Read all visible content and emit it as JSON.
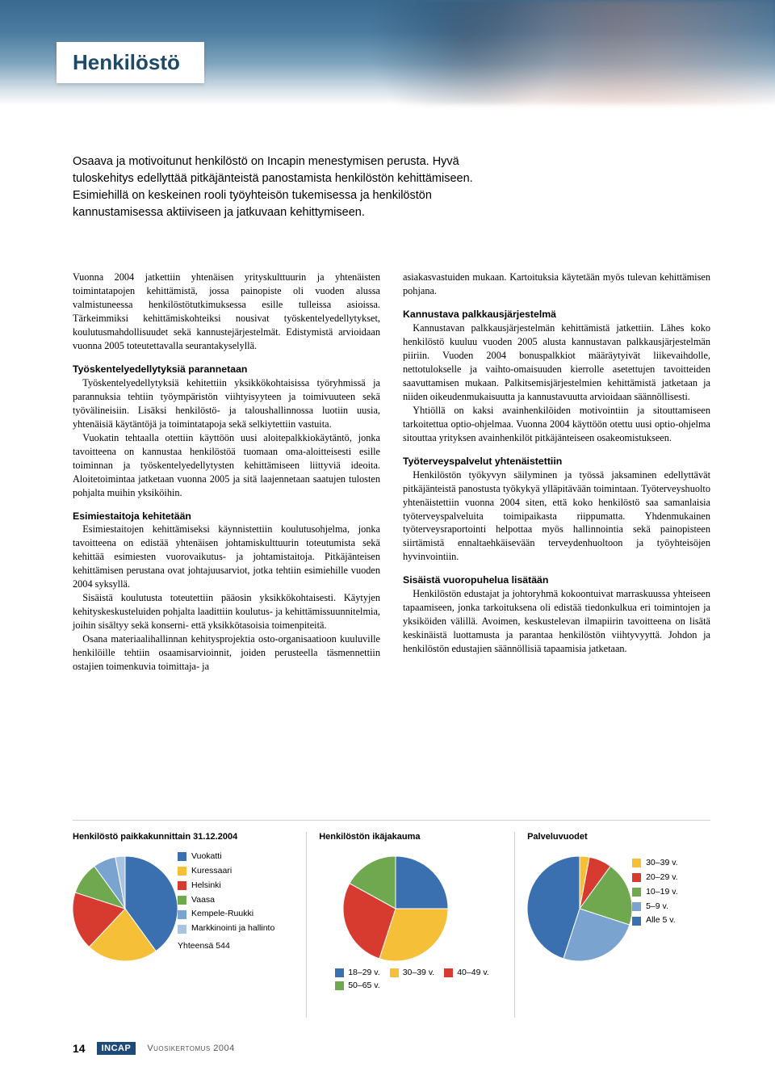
{
  "header": {
    "title": "Henkilöstö"
  },
  "intro": "Osaava ja motivoitunut henkilöstö on Incapin menestymisen perusta. Hyvä tuloskehitys edellyttää pitkäjänteistä panostamista henkilöstön kehittämiseen. Esimiehillä on keskeinen rooli työyhteisön tukemisessa ja henkilöstön kannustamisessa aktiiviseen ja jatkuvaan kehittymiseen.",
  "left": {
    "p1": "Vuonna 2004 jatkettiin yhtenäisen yrityskulttuurin ja yhtenäisten toimintatapojen kehittämistä, jossa painopiste oli vuoden alussa valmistuneessa henkilöstötutkimuksessa esille tulleissa asioissa. Tärkeimmiksi kehittämiskohteiksi nousivat työskentelyedellytykset, koulutusmahdollisuudet sekä kannustejärjestelmät. Edistymistä arvioidaan vuonna 2005 toteutettavalla seurantakyselyllä.",
    "h2": "Työskentelyedellytyksiä parannetaan",
    "p2": "Työskentelyedellytyksiä kehitettiin yksikkökohtaisissa työryhmissä ja parannuksia tehtiin työympäristön viihtyisyyteen ja toimivuuteen sekä työvälineisiin. Lisäksi henkilöstö- ja taloushallinnossa luotiin uusia, yhtenäisiä käytäntöjä ja toimintatapoja sekä selkiytettiin vastuita.",
    "p3": "Vuokatin tehtaalla otettiin käyttöön uusi aloitepalkkiokäytäntö, jonka tavoitteena on kannustaa henkilöstöä tuomaan oma-aloitteisesti esille toiminnan ja työskentelyedellytysten kehittämiseen liittyviä ideoita. Aloitetoimintaa jatketaan vuonna 2005 ja sitä laajennetaan saatujen tulosten pohjalta muihin yksiköihin.",
    "h3": "Esimiestaitoja kehitetään",
    "p4": "Esimiestaitojen kehittämiseksi käynnistettiin koulutusohjelma, jonka tavoitteena on edistää yhtenäisen johtamiskulttuurin toteutumista sekä kehittää esimiesten vuorovaikutus- ja johtamistaitoja. Pitkäjänteisen kehittämisen perustana ovat johtajuusarviot, jotka tehtiin esimiehille vuoden 2004 syksyllä.",
    "p5": "Sisäistä koulutusta toteutettiin pääosin yksikkökohtaisesti. Käytyjen kehityskeskusteluiden pohjalta laadittiin koulutus- ja kehittämissuunnitelmia, joihin sisältyy sekä konserni- että yksikkötasoisia toimenpiteitä.",
    "p6": "Osana materiaalihallinnan kehitysprojektia osto-organisaatioon kuuluville henkilöille tehtiin osaamisarvioinnit, joiden perusteella täsmennettiin ostajien toimenkuvia toimittaja- ja"
  },
  "right": {
    "p1": "asiakasvastuiden mukaan. Kartoituksia käytetään myös tulevan kehittämisen pohjana.",
    "h2": "Kannustava palkkausjärjestelmä",
    "p2": "Kannustavan palkkausjärjestelmän kehittämistä jatkettiin. Lähes koko henkilöstö kuuluu vuoden 2005 alusta kannustavan palkkausjärjestelmän piiriin. Vuoden 2004 bonuspalkkiot määräytyivät liikevaihdolle, nettotulokselle ja vaihto-omaisuuden kierrolle asetettujen tavoitteiden saavuttamisen mukaan. Palkitsemisjärjestelmien kehittämistä jatketaan ja niiden oikeudenmukaisuutta ja kannustavuutta arvioidaan säännöllisesti.",
    "p3": "Yhtiöllä on kaksi avainhenkilöiden motivointiin ja sitouttamiseen tarkoitettua optio-ohjelmaa. Vuonna 2004 käyttöön otettu uusi optio-ohjelma sitouttaa yrityksen avainhenkilöt pitkäjänteiseen osakeomistukseen.",
    "h3": "Työterveyspalvelut yhtenäistettiin",
    "p4": "Henkilöstön työkyvyn säilyminen ja työssä jaksaminen edellyttävät pitkäjänteistä panostusta työkykyä ylläpitävään toimintaan. Työterveyshuolto yhtenäistettiin vuonna 2004 siten, että koko henkilöstö saa samanlaisia työterveyspalveluita toimipaikasta riippumatta. Yhdenmukainen työterveysraportointi helpottaa myös hallinnointia sekä painopisteen siirtämistä ennaltaehkäisevään terveydenhuoltoon ja työyhteisöjen hyvinvointiin.",
    "h4": "Sisäistä vuoropuhelua lisätään",
    "p5": "Henkilöstön edustajat ja johtoryhmä kokoontuivat marraskuussa yhteiseen tapaamiseen, jonka tarkoituksena oli edistää tiedonkulkua eri toimintojen ja yksiköiden välillä. Avoimen, keskustelevan ilmapiirin tavoitteena on lisätä keskinäistä luottamusta ja parantaa henkilöstön viihtyvyyttä. Johdon ja henkilöstön edustajien säännöllisiä tapaamisia jatketaan."
  },
  "charts": {
    "chart1": {
      "title": "Henkilöstö paikkakunnittain 31.12.2004",
      "type": "pie",
      "slices": [
        {
          "label": "Vuokatti",
          "value": 40,
          "color": "#3a6fb0"
        },
        {
          "label": "Kuressaari",
          "value": 22,
          "color": "#f5c038"
        },
        {
          "label": "Helsinki",
          "value": 18,
          "color": "#d73a2e"
        },
        {
          "label": "Vaasa",
          "value": 10,
          "color": "#6fa84f"
        },
        {
          "label": "Kempele-Ruukki",
          "value": 7,
          "color": "#7aa3d0"
        },
        {
          "label": "Markkinointi ja hallinto",
          "value": 3,
          "color": "#a8c4e0"
        }
      ],
      "total_label": "Yhteensä 544"
    },
    "chart2": {
      "title": "Henkilöstön ikäjakauma",
      "type": "pie",
      "slices": [
        {
          "label": "18–29 v.",
          "value": 25,
          "color": "#3a6fb0"
        },
        {
          "label": "30–39 v.",
          "value": 30,
          "color": "#f5c038"
        },
        {
          "label": "40–49 v.",
          "value": 28,
          "color": "#d73a2e"
        },
        {
          "label": "50–65 v.",
          "value": 17,
          "color": "#6fa84f"
        }
      ]
    },
    "chart3": {
      "title": "Palveluvuodet",
      "type": "pie",
      "slices": [
        {
          "label": "30–39 v.",
          "value": 3,
          "color": "#f5c038"
        },
        {
          "label": "20–29 v.",
          "value": 7,
          "color": "#d73a2e"
        },
        {
          "label": "10–19 v.",
          "value": 20,
          "color": "#6fa84f"
        },
        {
          "label": "5–9 v.",
          "value": 25,
          "color": "#7aa3d0"
        },
        {
          "label": "Alle 5 v.",
          "value": 45,
          "color": "#3a6fb0"
        }
      ]
    }
  },
  "footer": {
    "page": "14",
    "logo": "INCAP",
    "text": "Vuosikertomus 2004"
  }
}
